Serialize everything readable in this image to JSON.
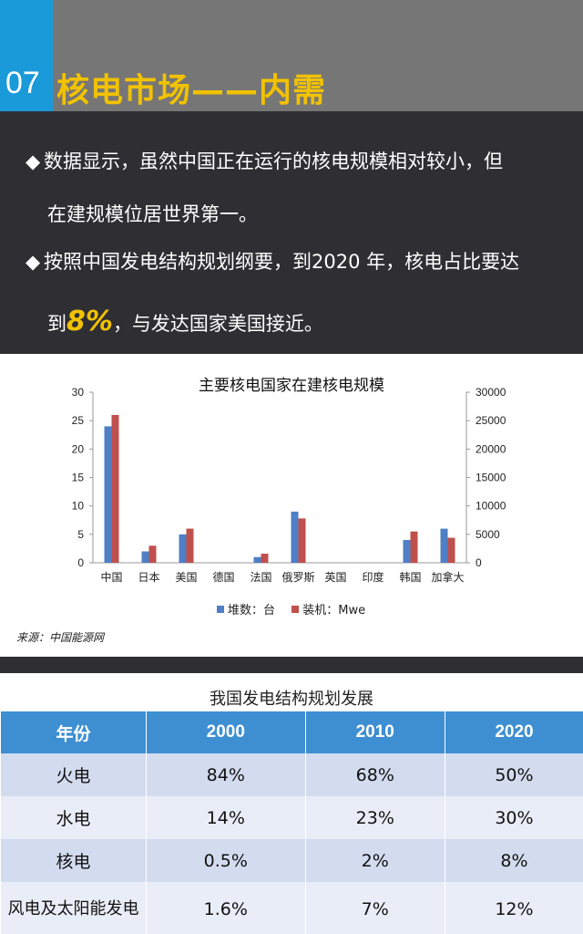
{
  "header": {
    "number": "07",
    "title": "核电市场——内需"
  },
  "bullets": {
    "b1_line1": "数据显示，虽然中国正在运行的核电规模相对较小，但",
    "b1_line2": "在建规模位居世界第一。",
    "b2_line1": "按照中国发电结构规划纲要，到2020 年，核电占比要达",
    "b2_pre": "到",
    "b2_highlight": "8%",
    "b2_post": "，与发达国家美国接近。",
    "marker": "◆"
  },
  "chart_data": {
    "type": "bar",
    "title": "主要核电国家在建核电规模",
    "categories": [
      "中国",
      "日本",
      "美国",
      "德国",
      "法国",
      "俄罗斯",
      "英国",
      "印度",
      "韩国",
      "加拿大"
    ],
    "series": [
      {
        "name": "堆数：台",
        "axis": "left",
        "color": "#4f7fc4",
        "values": [
          24,
          2,
          5,
          0,
          1,
          9,
          0,
          0,
          4,
          6
        ]
      },
      {
        "name": "装机：Mwe",
        "axis": "right",
        "color": "#c0504d",
        "values": [
          26000,
          3000,
          6000,
          0,
          1600,
          7800,
          0,
          0,
          5500,
          4400
        ]
      }
    ],
    "ylim_left": [
      0,
      30
    ],
    "yticks_left": [
      "0",
      "5",
      "10",
      "15",
      "20",
      "25",
      "30"
    ],
    "ylim_right": [
      0,
      30000
    ],
    "yticks_right": [
      "0",
      "5000",
      "10000",
      "15000",
      "20000",
      "25000",
      "30000"
    ],
    "legend_position": "bottom",
    "source": "来源：中国能源网"
  },
  "table": {
    "title": "我国发电结构规划发展",
    "headers": [
      "年份",
      "2000",
      "2010",
      "2020"
    ],
    "rows": [
      [
        "火电",
        "84%",
        "68%",
        "50%"
      ],
      [
        "水电",
        "14%",
        "23%",
        "30%"
      ],
      [
        "核电",
        "0.5%",
        "2%",
        "8%"
      ],
      [
        "风电及太阳能发电",
        "1.6%",
        "7%",
        "12%"
      ]
    ]
  }
}
